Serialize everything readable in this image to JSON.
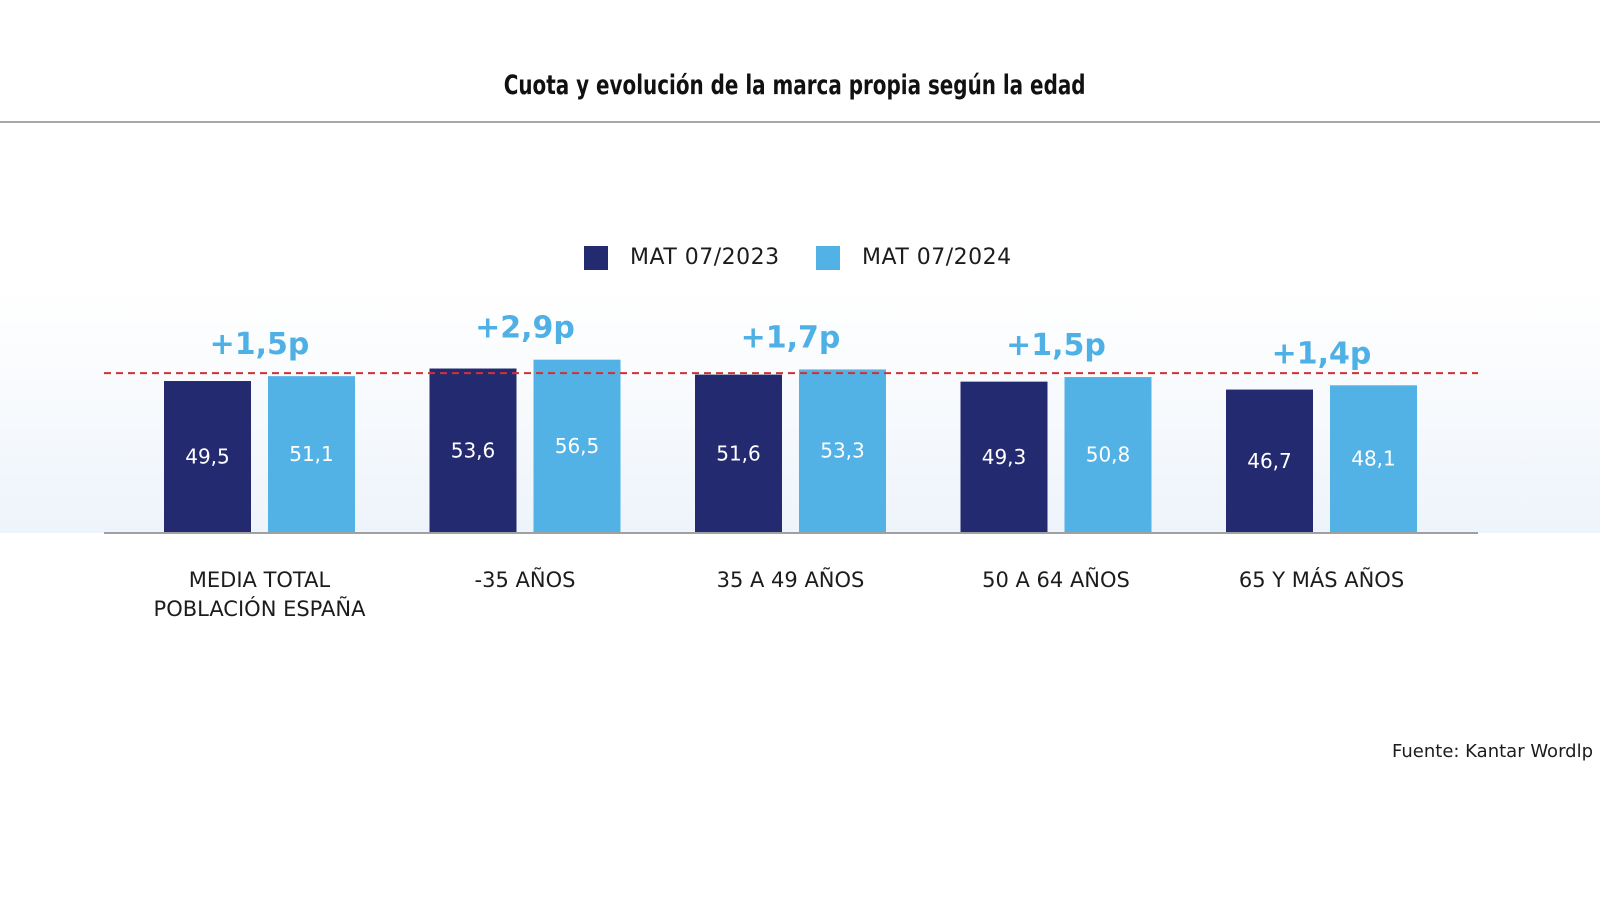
{
  "header": {
    "title": "Cuota y evolución de la marca propia según la edad"
  },
  "legend": [
    {
      "label": "MAT 07/2023",
      "color": "#242a70"
    },
    {
      "label": "MAT 07/2024",
      "color": "#52b2e6"
    }
  ],
  "footer": {
    "source": "Fuente: Kantar Wordlp"
  },
  "colors": {
    "series_2023": "#242a70",
    "series_2024": "#52b2e6",
    "delta_text": "#4fb0e5",
    "reference_line": "#cc3333",
    "axis": "#a0a0a0"
  },
  "chart_data": {
    "type": "bar",
    "title": "Cuota y evolución de la marca propia según la edad",
    "xlabel": "",
    "ylabel": "",
    "ylim": [
      0,
      60
    ],
    "grid": false,
    "legend_position": "top-center",
    "categories": [
      [
        "MEDIA TOTAL",
        "POBLACIÓN ESPAÑA"
      ],
      [
        "-35 AÑOS"
      ],
      [
        "35 A 49 AÑOS"
      ],
      [
        "50 A 64 AÑOS"
      ],
      [
        "65 Y MÁS AÑOS"
      ]
    ],
    "series": [
      {
        "name": "MAT 07/2023",
        "values": [
          49.5,
          53.6,
          51.6,
          49.3,
          46.7
        ],
        "labels": [
          "49,5",
          "53,6",
          "51,6",
          "49,3",
          "46,7"
        ]
      },
      {
        "name": "MAT 07/2024",
        "values": [
          51.1,
          56.5,
          53.3,
          50.8,
          48.1
        ],
        "labels": [
          "51,1",
          "56,5",
          "53,3",
          "50,8",
          "48,1"
        ]
      }
    ],
    "annotations": {
      "deltas": [
        "+1,5p",
        "+2,9p",
        "+1,7p",
        "+1,5p",
        "+1,4p"
      ],
      "reference_line": {
        "value": 52.1,
        "style": "dashed"
      }
    }
  }
}
